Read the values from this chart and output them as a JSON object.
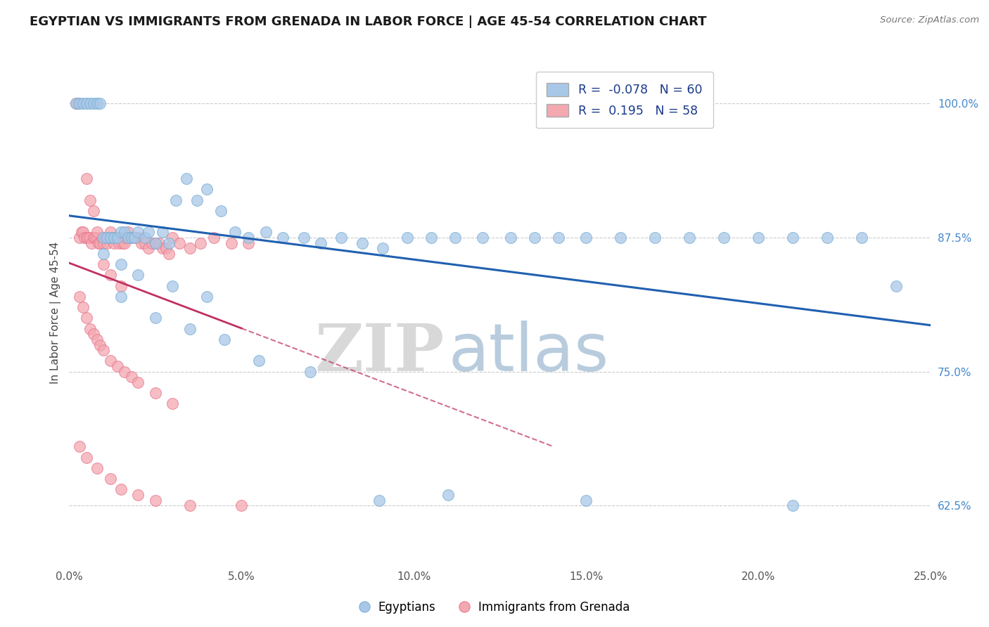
{
  "title": "EGYPTIAN VS IMMIGRANTS FROM GRENADA IN LABOR FORCE | AGE 45-54 CORRELATION CHART",
  "source": "Source: ZipAtlas.com",
  "xlabel_vals": [
    0.0,
    5.0,
    10.0,
    15.0,
    20.0,
    25.0
  ],
  "ylabel_vals": [
    62.5,
    75.0,
    87.5,
    100.0
  ],
  "ylabel_ticks": [
    "62.5%",
    "75.0%",
    "87.5%",
    "100.0%"
  ],
  "ylabel_label": "In Labor Force | Age 45-54",
  "xlim": [
    0.0,
    25.0
  ],
  "ylim": [
    57.0,
    104.0
  ],
  "legend_blue_label": "Egyptians",
  "legend_pink_label": "Immigrants from Grenada",
  "R_blue": -0.078,
  "N_blue": 60,
  "R_pink": 0.195,
  "N_pink": 58,
  "blue_color": "#a8c8e8",
  "blue_edge_color": "#7aafd4",
  "pink_color": "#f4a8b0",
  "pink_edge_color": "#e87890",
  "blue_line_color": "#2060b0",
  "pink_line_color": "#c03060",
  "watermark_zip": "ZIP",
  "watermark_atlas": "atlas",
  "watermark_zip_color": "#d8d8d8",
  "watermark_atlas_color": "#b8ccdd",
  "blue_x": [
    0.2,
    0.3,
    0.4,
    0.5,
    0.6,
    0.7,
    0.8,
    0.9,
    1.0,
    1.1,
    1.2,
    1.3,
    1.4,
    1.5,
    1.6,
    1.7,
    1.8,
    1.9,
    2.0,
    2.2,
    2.3,
    2.5,
    2.7,
    2.9,
    3.1,
    3.4,
    3.7,
    4.0,
    4.4,
    4.8,
    5.2,
    5.7,
    6.2,
    6.8,
    7.3,
    7.9,
    8.5,
    9.1,
    9.8,
    10.5,
    11.2,
    12.0,
    12.8,
    13.5,
    14.2,
    15.0,
    16.0,
    17.0,
    18.0,
    19.0,
    20.0,
    21.0,
    22.0,
    23.0,
    24.0,
    1.0,
    1.5,
    2.0,
    3.0,
    4.0
  ],
  "blue_y": [
    100.0,
    100.0,
    100.0,
    100.0,
    100.0,
    100.0,
    100.0,
    100.0,
    87.5,
    87.5,
    87.5,
    87.5,
    87.5,
    88.0,
    88.0,
    87.5,
    87.5,
    87.5,
    88.0,
    87.5,
    88.0,
    87.0,
    88.0,
    87.0,
    91.0,
    93.0,
    91.0,
    92.0,
    90.0,
    88.0,
    87.5,
    88.0,
    87.5,
    87.5,
    87.0,
    87.5,
    87.0,
    86.5,
    87.5,
    87.5,
    87.5,
    87.5,
    87.5,
    87.5,
    87.5,
    87.5,
    87.5,
    87.5,
    87.5,
    87.5,
    87.5,
    87.5,
    87.5,
    87.5,
    83.0,
    86.0,
    85.0,
    84.0,
    83.0,
    82.0
  ],
  "blue_x2": [
    1.5,
    2.5,
    3.5,
    4.5,
    5.5,
    7.0,
    9.0,
    11.0,
    15.0,
    21.0
  ],
  "blue_y2": [
    82.0,
    80.0,
    79.0,
    78.0,
    76.0,
    75.0,
    63.0,
    63.5,
    63.0,
    62.5
  ],
  "pink_x": [
    0.2,
    0.25,
    0.3,
    0.35,
    0.4,
    0.45,
    0.5,
    0.55,
    0.6,
    0.65,
    0.7,
    0.75,
    0.8,
    0.85,
    0.9,
    0.95,
    1.0,
    1.05,
    1.1,
    1.15,
    1.2,
    1.25,
    1.3,
    1.35,
    1.4,
    1.45,
    1.5,
    1.55,
    1.6,
    1.65,
    1.7,
    1.75,
    1.8,
    1.9,
    2.0,
    2.1,
    2.2,
    2.3,
    2.4,
    2.5,
    2.6,
    2.7,
    2.8,
    2.9,
    3.0,
    3.2,
    3.5,
    3.8,
    4.2,
    4.7,
    5.2,
    0.5,
    0.6,
    0.7,
    0.8,
    1.0,
    1.2,
    1.5
  ],
  "pink_y": [
    100.0,
    100.0,
    87.5,
    88.0,
    88.0,
    87.5,
    87.5,
    87.5,
    87.5,
    87.0,
    87.5,
    87.5,
    87.5,
    87.0,
    87.0,
    87.5,
    87.0,
    87.5,
    87.0,
    87.5,
    88.0,
    87.5,
    87.0,
    87.5,
    87.5,
    87.0,
    87.5,
    87.0,
    87.0,
    87.5,
    88.0,
    87.5,
    87.5,
    87.5,
    87.5,
    87.0,
    87.0,
    86.5,
    87.0,
    87.0,
    87.0,
    86.5,
    86.5,
    86.0,
    87.5,
    87.0,
    86.5,
    87.0,
    87.5,
    87.0,
    87.0,
    93.0,
    91.0,
    90.0,
    88.0,
    85.0,
    84.0,
    83.0
  ],
  "pink_x2": [
    0.3,
    0.4,
    0.5,
    0.6,
    0.7,
    0.8,
    0.9,
    1.0,
    1.2,
    1.4,
    1.6,
    1.8,
    2.0,
    2.5,
    3.0
  ],
  "pink_y2": [
    82.0,
    81.0,
    80.0,
    79.0,
    78.5,
    78.0,
    77.5,
    77.0,
    76.0,
    75.5,
    75.0,
    74.5,
    74.0,
    73.0,
    72.0
  ],
  "pink_x3": [
    0.3,
    0.5,
    0.8,
    1.2,
    1.5,
    2.0,
    2.5,
    3.5,
    5.0
  ],
  "pink_y3": [
    68.0,
    67.0,
    66.0,
    65.0,
    64.0,
    63.5,
    63.0,
    62.5,
    62.5
  ]
}
